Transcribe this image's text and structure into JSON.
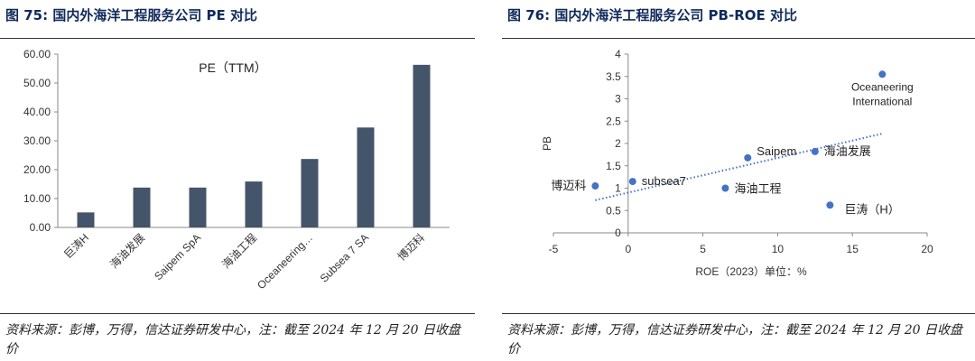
{
  "left": {
    "figure_title": "图 75:  国内外海洋工程服务公司 PE 对比",
    "source": "资料来源：彭博，万得，信达证券研发中心，注：截至 2024 年 12 月 20 日收盘价"
  },
  "right": {
    "figure_title": "图 76:  国内外海洋工程服务公司 PB-ROE 对比",
    "source": "资料来源：彭博，万得，信达证券研发中心，注：截至 2024 年 12 月 20 日收盘价"
  },
  "colors": {
    "bar": "#44546a",
    "point": "#4472c4",
    "trend": "#4472c4",
    "title": "#0f2a5a"
  },
  "chart_data": [
    {
      "type": "bar",
      "title": "PE（TTM）",
      "categories": [
        "巨涛H",
        "海油发展",
        "Saipem SpA",
        "海油工程",
        "Oceaneering…",
        "Subsea 7 SA",
        "博迈科"
      ],
      "values": [
        5.2,
        13.8,
        13.8,
        15.9,
        23.7,
        34.6,
        56.3
      ],
      "ylim": [
        0,
        60
      ],
      "yticks": [
        0,
        10,
        20,
        30,
        40,
        50,
        60
      ],
      "ytick_labels": [
        "0.00",
        "10.00",
        "20.00",
        "30.00",
        "40.00",
        "50.00",
        "60.00"
      ],
      "grid": false
    },
    {
      "type": "scatter",
      "xlabel": "ROE（2023）单位：%",
      "ylabel": "PB",
      "xlim": [
        -5,
        20
      ],
      "ylim": [
        0,
        4
      ],
      "xticks": [
        -5,
        0,
        5,
        10,
        15,
        20
      ],
      "xtick_labels": [
        "-5",
        "0",
        "5",
        "10",
        "15",
        "20"
      ],
      "yticks": [
        0,
        0.5,
        1,
        1.5,
        2,
        2.5,
        3,
        3.5,
        4
      ],
      "ytick_labels": [
        "0",
        "0.5",
        "1",
        "1.5",
        "2",
        "2.5",
        "3",
        "3.5",
        "4"
      ],
      "points": [
        {
          "label": "博迈科",
          "x": -2.2,
          "y": 1.05
        },
        {
          "label": "subsea7",
          "x": 0.3,
          "y": 1.15
        },
        {
          "label": "海油工程",
          "x": 6.5,
          "y": 1.0
        },
        {
          "label": "Saipem",
          "x": 8.0,
          "y": 1.68
        },
        {
          "label": "海油发展",
          "x": 12.5,
          "y": 1.82
        },
        {
          "label": "巨涛（H）",
          "x": 13.5,
          "y": 0.62
        },
        {
          "label": "Oceaneering International",
          "x": 17.0,
          "y": 3.55
        }
      ],
      "trendline": {
        "type": "linear",
        "from": {
          "x": -2.2,
          "y": 0.73
        },
        "to": {
          "x": 17.0,
          "y": 2.22
        }
      },
      "grid": false
    }
  ]
}
